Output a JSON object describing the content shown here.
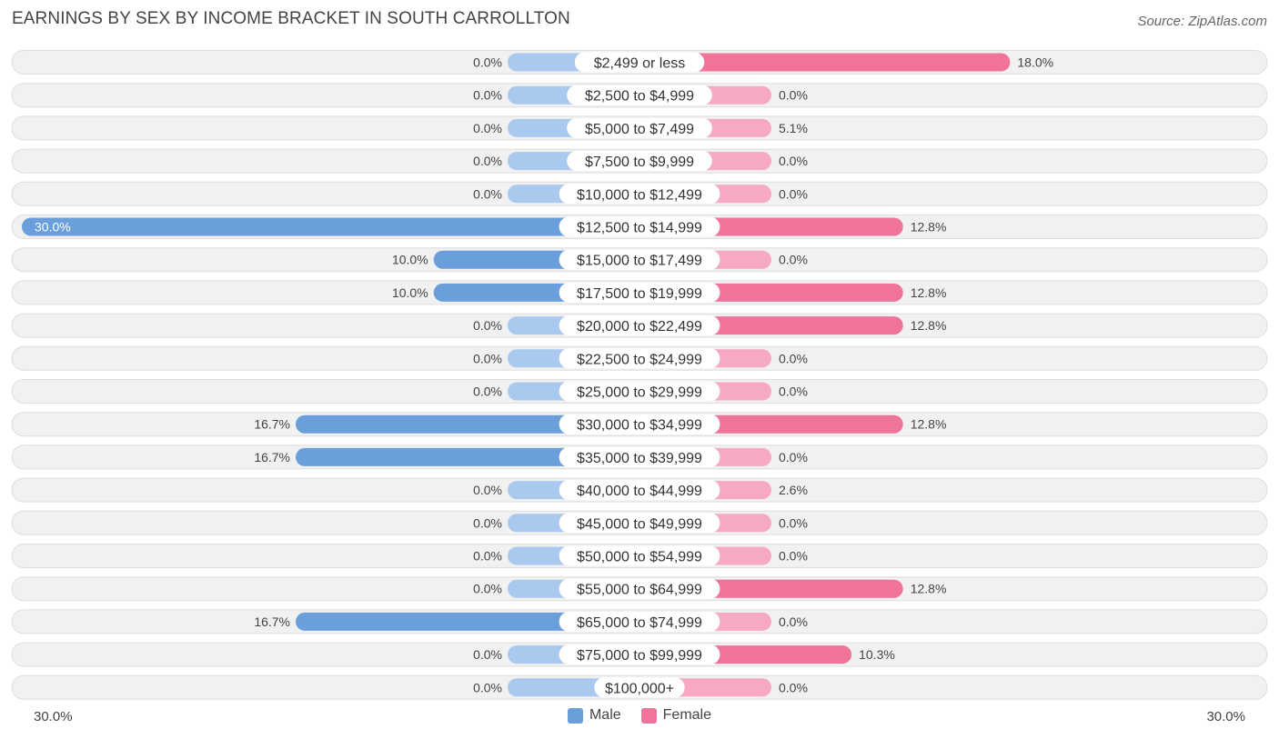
{
  "title": "EARNINGS BY SEX BY INCOME BRACKET IN SOUTH CARROLLTON",
  "source": "Source: ZipAtlas.com",
  "colors": {
    "male_strong": "#6b9fdc",
    "male_light": "#aac9ee",
    "female_strong": "#f07399",
    "female_light": "#f6a9c0",
    "row_bg": "#f1f1f1",
    "row_border": "#dedede"
  },
  "legend": {
    "male": "Male",
    "female": "Female"
  },
  "axis": {
    "left_label": "30.0%",
    "right_label": "30.0%"
  },
  "chart_data": {
    "type": "bar",
    "orientation": "horizontal-diverging",
    "title": "EARNINGS BY SEX BY INCOME BRACKET IN SOUTH CARROLLTON",
    "xlim": [
      -30,
      30
    ],
    "categories": [
      "$2,499 or less",
      "$2,500 to $4,999",
      "$5,000 to $7,499",
      "$7,500 to $9,999",
      "$10,000 to $12,499",
      "$12,500 to $14,999",
      "$15,000 to $17,499",
      "$17,500 to $19,999",
      "$20,000 to $22,499",
      "$22,500 to $24,999",
      "$25,000 to $29,999",
      "$30,000 to $34,999",
      "$35,000 to $39,999",
      "$40,000 to $44,999",
      "$45,000 to $49,999",
      "$50,000 to $54,999",
      "$55,000 to $64,999",
      "$65,000 to $74,999",
      "$75,000 to $99,999",
      "$100,000+"
    ],
    "series": [
      {
        "name": "Male",
        "values": [
          0.0,
          0.0,
          0.0,
          0.0,
          0.0,
          30.0,
          10.0,
          10.0,
          0.0,
          0.0,
          0.0,
          16.7,
          16.7,
          0.0,
          0.0,
          0.0,
          0.0,
          16.7,
          0.0,
          0.0
        ],
        "labels": [
          "0.0%",
          "0.0%",
          "0.0%",
          "0.0%",
          "0.0%",
          "30.0%",
          "10.0%",
          "10.0%",
          "0.0%",
          "0.0%",
          "0.0%",
          "16.7%",
          "16.7%",
          "0.0%",
          "0.0%",
          "0.0%",
          "0.0%",
          "16.7%",
          "0.0%",
          "0.0%"
        ]
      },
      {
        "name": "Female",
        "values": [
          18.0,
          0.0,
          5.1,
          0.0,
          0.0,
          12.8,
          0.0,
          12.8,
          12.8,
          0.0,
          0.0,
          12.8,
          0.0,
          2.6,
          0.0,
          0.0,
          12.8,
          0.0,
          10.3,
          0.0
        ],
        "labels": [
          "18.0%",
          "0.0%",
          "5.1%",
          "0.0%",
          "0.0%",
          "12.8%",
          "0.0%",
          "12.8%",
          "12.8%",
          "0.0%",
          "0.0%",
          "12.8%",
          "0.0%",
          "2.6%",
          "0.0%",
          "0.0%",
          "12.8%",
          "0.0%",
          "10.3%",
          "0.0%"
        ]
      }
    ],
    "legend": [
      "Male",
      "Female"
    ],
    "legend_position": "bottom-center"
  }
}
